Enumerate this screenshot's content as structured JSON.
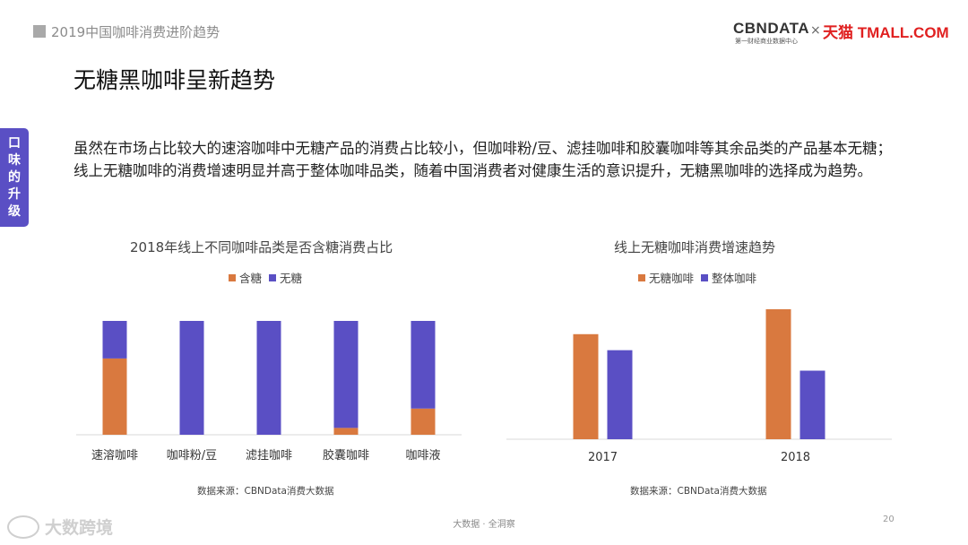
{
  "header": {
    "report_title": "2019中国咖啡消费进阶趋势",
    "logo_cbn": "CBNDATA",
    "logo_cbn_sub": "第一财经商业数据中心",
    "logo_x": "×",
    "logo_tmall": "天猫 TMALL.COM"
  },
  "page_title": "无糖黑咖啡呈新趋势",
  "side_tab": [
    "口",
    "味",
    "的",
    "升",
    "级"
  ],
  "body_text": "虽然在市场占比较大的速溶咖啡中无糖产品的消费占比较小，但咖啡粉/豆、滤挂咖啡和胶囊咖啡等其余品类的产品基本无糖；线上无糖咖啡的消费增速明显并高于整体咖啡品类，随着中国消费者对健康生活的意识提升，无糖黑咖啡的选择成为趋势。",
  "footer": {
    "center": "大数据 · 全洞察",
    "page_number": "20",
    "watermark": "大数跨境"
  },
  "colors": {
    "orange": "#d9793f",
    "purple": "#5a4fc4",
    "accent": "#5a4fc4"
  },
  "chart_data": [
    {
      "type": "bar",
      "stacked": true,
      "title": "2018年线上不同咖啡品类是否含糖消费占比",
      "categories": [
        "速溶咖啡",
        "咖啡粉/豆",
        "滤挂咖啡",
        "胶囊咖啡",
        "咖啡液"
      ],
      "series": [
        {
          "name": "含糖",
          "color": "#d9793f",
          "values": [
            0.67,
            0,
            0,
            0.06,
            0.23
          ]
        },
        {
          "name": "无糖",
          "color": "#5a4fc4",
          "values": [
            0.33,
            1.0,
            1.0,
            0.94,
            0.77
          ]
        }
      ],
      "ylim": [
        0,
        1
      ],
      "grid": false,
      "legend_position": "top",
      "source": "数据来源：CBNData消费大数据"
    },
    {
      "type": "bar",
      "title": "线上无糖咖啡消费增速趋势",
      "categories": [
        "2017",
        "2018"
      ],
      "series": [
        {
          "name": "无糖咖啡",
          "color": "#d9793f",
          "values": [
            118,
            146
          ]
        },
        {
          "name": "整体咖啡",
          "color": "#5a4fc4",
          "values": [
            100,
            77
          ]
        }
      ],
      "ylim": [
        0,
        150
      ],
      "grid": false,
      "legend_position": "top",
      "source": "数据来源：CBNData消费大数据"
    }
  ]
}
